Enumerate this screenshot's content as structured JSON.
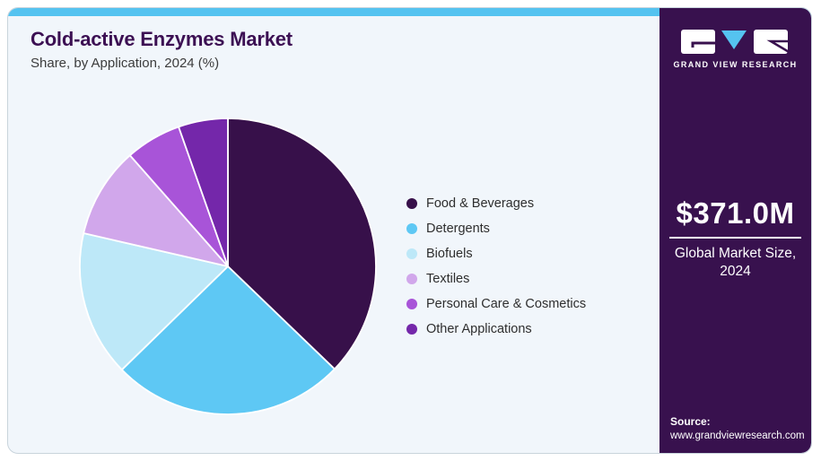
{
  "page": {
    "card_background": "#f1f6fb",
    "card_border_color": "#c9d4dc",
    "top_strip_color": "#55c3f0"
  },
  "header": {
    "title": "Cold-active Enzymes Market",
    "subtitle": "Share, by Application, 2024 (%)",
    "title_color": "#3c1053"
  },
  "chart_data": {
    "type": "pie",
    "title": "Cold-active Enzymes Market Share, by Application, 2024 (%)",
    "categories": [
      "Food & Beverages",
      "Detergents",
      "Biofuels",
      "Textiles",
      "Personal Care & Cosmetics",
      "Other Applications"
    ],
    "values": [
      37.2,
      25.5,
      15.9,
      9.9,
      6.1,
      5.4
    ],
    "unit": "%",
    "colors": [
      "#37104a",
      "#5ec8f4",
      "#bde8f8",
      "#d1a7eb",
      "#a854d8",
      "#7427aa"
    ],
    "start_angle_deg": 0,
    "direction": "clockwise",
    "slice_border_color": "#ffffff",
    "legend_position": "right",
    "data_labels": false
  },
  "sidebar": {
    "background": "#38114e",
    "logo": {
      "brand": "GRAND VIEW RESEARCH",
      "accent_color": "#55c3f0"
    },
    "market_size": {
      "value": "$371.0M",
      "label": "Global Market Size, 2024"
    },
    "source": {
      "label": "Source:",
      "url": "www.grandviewresearch.com"
    }
  }
}
